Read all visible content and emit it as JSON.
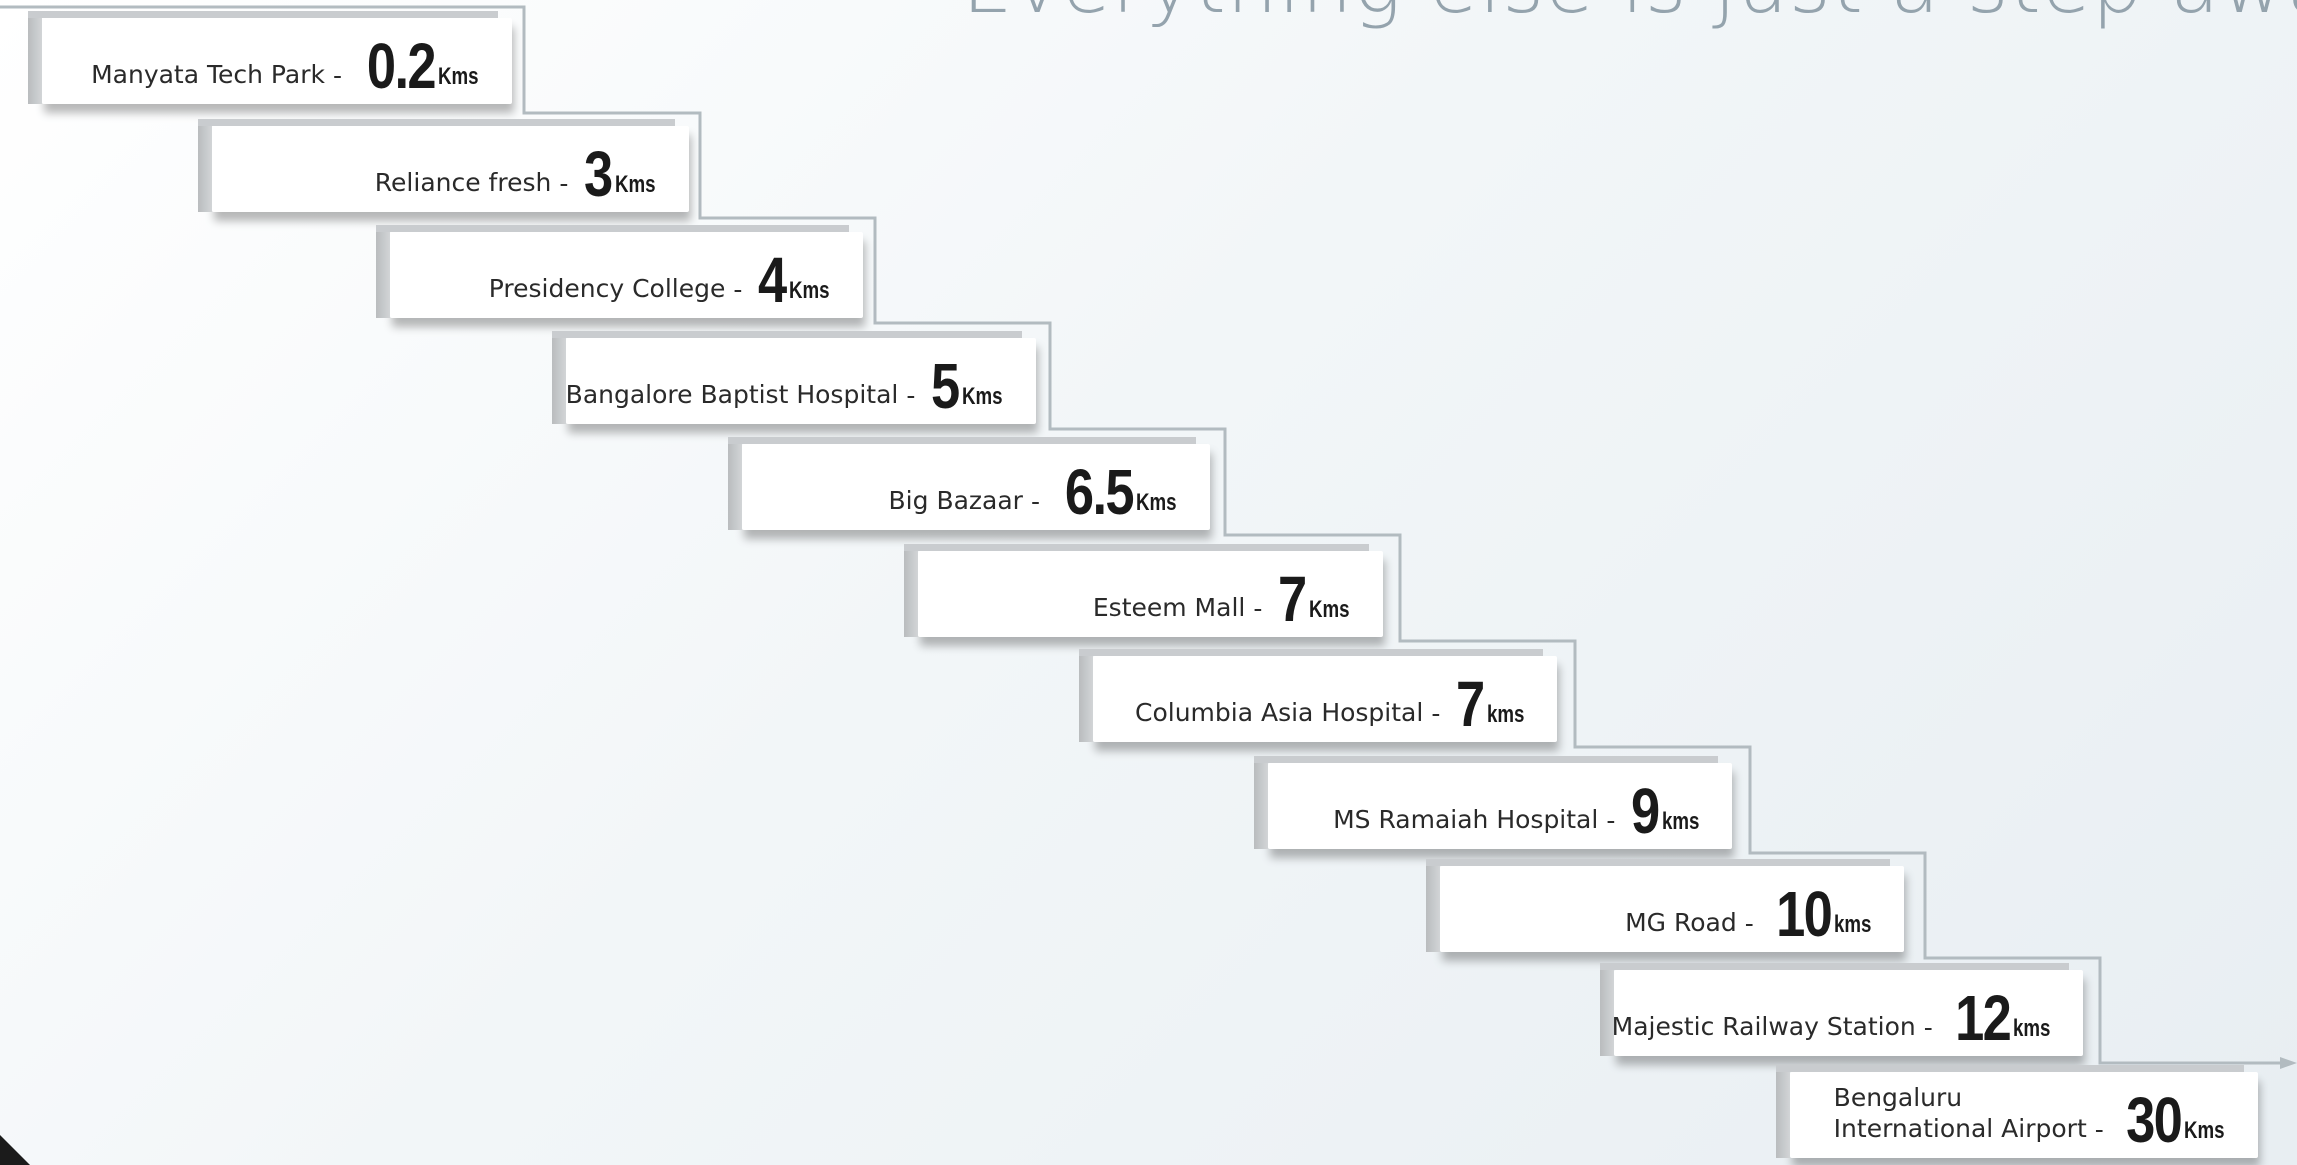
{
  "headline": "Everything else is just a step away",
  "unit_default": "Kms",
  "destinations": [
    {
      "place": "Manyata Tech Park",
      "distance": "0.2",
      "unit": "Kms"
    },
    {
      "place": "Reliance fresh",
      "distance": "3",
      "unit": "Kms"
    },
    {
      "place": "Presidency College",
      "distance": "4",
      "unit": "Kms"
    },
    {
      "place": "Bangalore Baptist Hospital",
      "distance": "5",
      "unit": "Kms"
    },
    {
      "place": "Big Bazaar",
      "distance": "6.5",
      "unit": "Kms"
    },
    {
      "place": "Esteem Mall",
      "distance": "7",
      "unit": "Kms"
    },
    {
      "place": "Columbia Asia Hospital",
      "distance": "7",
      "unit": "kms"
    },
    {
      "place": "MS Ramaiah Hospital",
      "distance": "9",
      "unit": "kms"
    },
    {
      "place": "MG Road",
      "distance": "10",
      "unit": "kms"
    },
    {
      "place": "Majestic Railway Station",
      "distance": "12",
      "unit": "kms"
    },
    {
      "place": "Bengaluru\nInternational Airport",
      "distance": "30",
      "unit": "Kms"
    }
  ],
  "colors": {
    "headline": "#94a3ad",
    "step_line": "#b2bbc0",
    "card": "#ffffff",
    "text": "#1a1a1a"
  }
}
